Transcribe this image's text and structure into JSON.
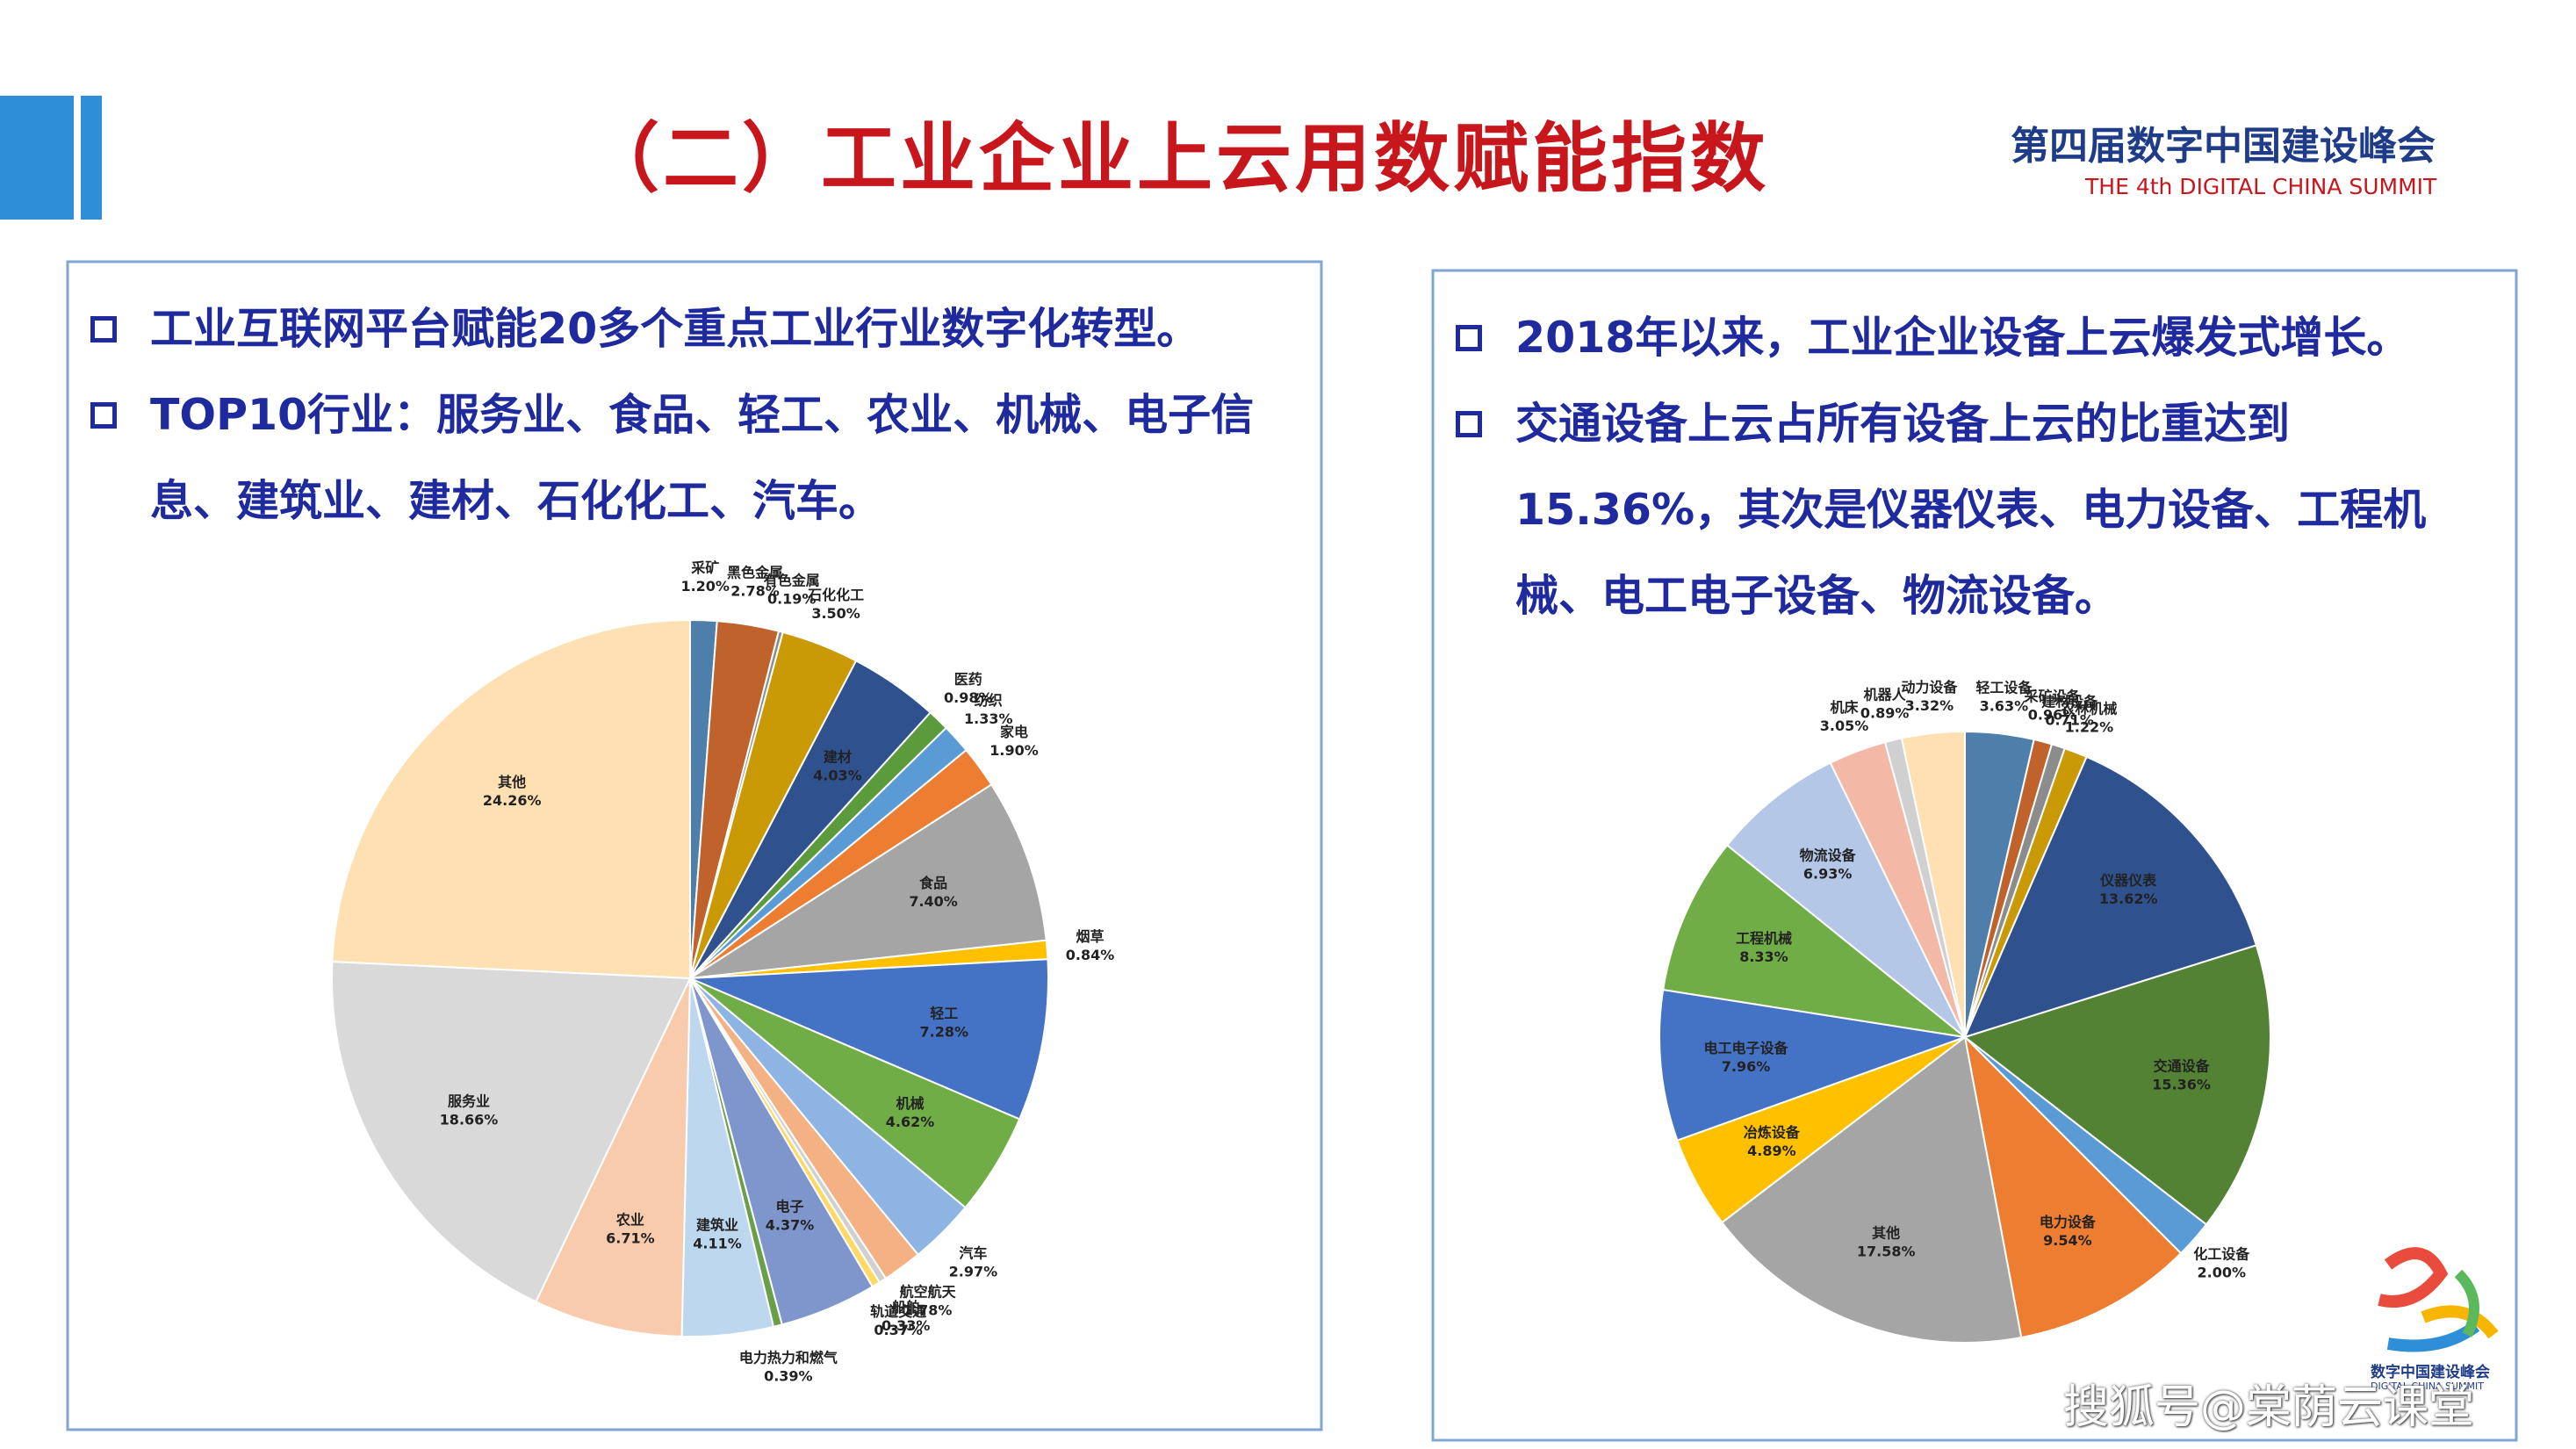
{
  "header": {
    "title": "（二）工业企业上云用数赋能指数",
    "logo_title": "第四届数字中国建设峰会",
    "logo_subtitle": "THE 4th DIGITAL CHINA SUMMIT"
  },
  "left_panel": {
    "bullets": [
      "工业互联网平台赋能20多个重点工业行业数字化转型。",
      "TOP10行业：服务业、食品、轻工、农业、机械、电子信息、建筑业、建材、石化化工、汽车。"
    ]
  },
  "right_panel": {
    "bullets": [
      "2018年以来，工业企业设备上云爆发式增长。",
      "交通设备上云占所有设备上云的比重达到15.36%，其次是仪器仪表、电力设备、工程机械、电工电子设备、物流设备。"
    ]
  },
  "chart_data": [
    {
      "type": "pie",
      "categories": [
        "采矿",
        "黑色金属",
        "有色金属",
        "石化化工",
        "建材",
        "医药",
        "纺织",
        "家电",
        "食品",
        "烟草",
        "轻工",
        "机械",
        "汽车",
        "航空航天",
        "船舶",
        "轨道交通",
        "电子",
        "电力热力和燃气",
        "建筑业",
        "农业",
        "服务业",
        "其他"
      ],
      "values": [
        1.2,
        2.78,
        0.19,
        3.5,
        4.03,
        0.98,
        1.33,
        1.9,
        7.4,
        0.84,
        7.28,
        4.62,
        2.97,
        1.78,
        0.33,
        0.37,
        4.37,
        0.39,
        4.11,
        6.71,
        18.66,
        24.26
      ],
      "value_labels": [
        "1.20%",
        "2.78%",
        "0.19%",
        "3.50%",
        "4.03%",
        "0.98%",
        "1.33%",
        "1.90%",
        "7.40%",
        "0.84%",
        "7.28%",
        "4.62%",
        "2.97%",
        "1.78%",
        "0.33%",
        "0.37%",
        "4.37%",
        "0.39%",
        "4.11%",
        "6.71%",
        "18.66%",
        "24.26%"
      ],
      "colors": [
        "#4e7fab",
        "#c0622b",
        "#8c8c8c",
        "#c99a06",
        "#2f528f",
        "#5b9b3b",
        "#5b9bd5",
        "#ed7d31",
        "#a5a5a5",
        "#ffc000",
        "#4472c4",
        "#70ad47",
        "#8eb4e3",
        "#f4b183",
        "#d0d0d0",
        "#ffd966",
        "#7f96cc",
        "#6a9f4a",
        "#bdd7ee",
        "#f8cbad",
        "#d9d9d9",
        "#ffe0b2"
      ]
    },
    {
      "type": "pie",
      "categories": [
        "轻工设备",
        "采矿设备",
        "建材设备",
        "农林机械",
        "仪器仪表",
        "交通设备",
        "化工设备",
        "电力设备",
        "其他",
        "冶炼设备",
        "电工电子设备",
        "工程机械",
        "物流设备",
        "机床",
        "机器人",
        "动力设备"
      ],
      "values": [
        3.63,
        0.96,
        0.71,
        1.22,
        13.62,
        15.36,
        2.0,
        9.54,
        17.58,
        4.89,
        7.96,
        8.33,
        6.93,
        3.05,
        0.89,
        3.32
      ],
      "value_labels": [
        "3.63%",
        "0.96%",
        "0.71%",
        "1.22%",
        "13.62%",
        "15.36%",
        "2.00%",
        "9.54%",
        "17.58%",
        "4.89%",
        "7.96%",
        "8.33%",
        "6.93%",
        "3.05%",
        "0.89%",
        "3.32%"
      ],
      "colors": [
        "#4e7fab",
        "#c0622b",
        "#8c8c8c",
        "#c99a06",
        "#2f528f",
        "#548235",
        "#5b9bd5",
        "#ed7d31",
        "#a5a5a5",
        "#ffc000",
        "#4472c4",
        "#70ad47",
        "#b4c7e7",
        "#f4b9a6",
        "#d0d0d0",
        "#ffe0b2"
      ]
    }
  ],
  "watermark": "搜狐号@棠荫云课堂",
  "corner_logo": {
    "title": "数字中国建设峰会",
    "subtitle": "DIGITAL CHINA SUMMIT"
  }
}
